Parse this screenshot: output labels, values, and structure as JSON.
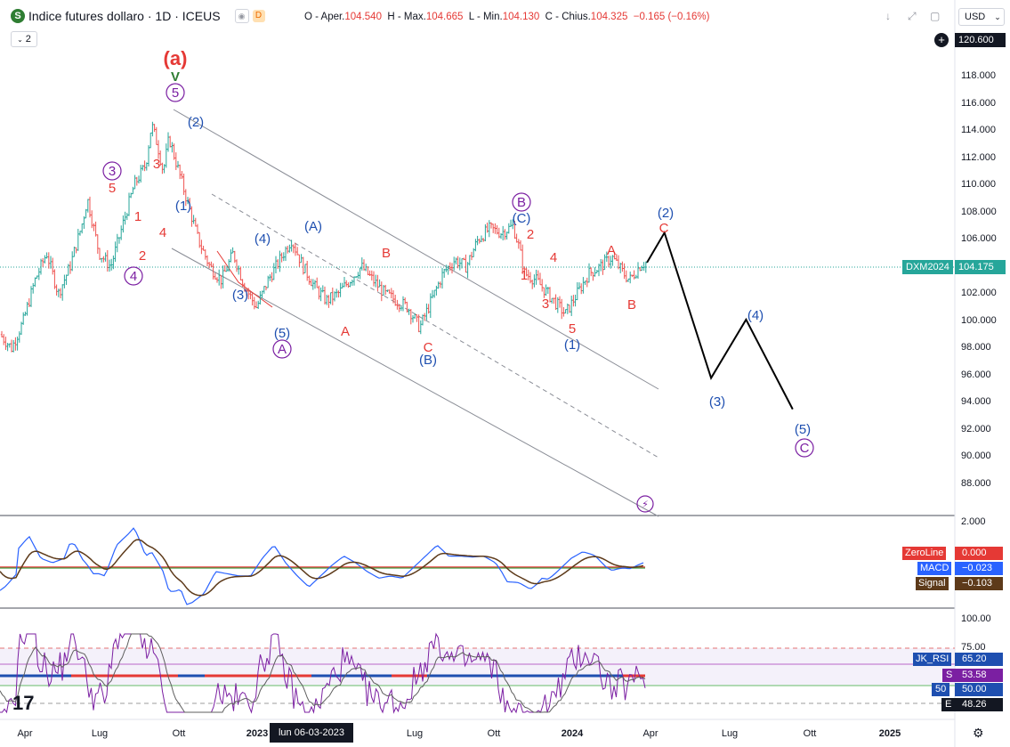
{
  "header": {
    "title": "Indice futures dollaro · 1D · ICEUS",
    "logo": "S",
    "open_label": "O - Aper.",
    "open_value": "104.540",
    "high_label": "H - Max.",
    "high_value": "104.665",
    "low_label": "L - Min.",
    "low_value": "104.130",
    "close_label": "C - Chius.",
    "close_value": "104.325",
    "change": "−0.165 (−0.16%)",
    "indicator_count": "2",
    "currency": "USD",
    "flag_d": "D"
  },
  "price_axis": {
    "ticks": [
      "120.600",
      "118.000",
      "116.000",
      "114.000",
      "112.000",
      "110.000",
      "108.000",
      "106.000",
      "104.175",
      "102.000",
      "100.000",
      "98.000",
      "96.000",
      "94.000",
      "92.000",
      "90.000",
      "88.000"
    ],
    "current_label": "DXM2024",
    "current_value": "104.175",
    "top_value": "120.600"
  },
  "macd_axis": {
    "top_tick": "2.000",
    "zeroline_label": "ZeroLine",
    "zeroline_value": "0.000",
    "macd_label": "MACD",
    "macd_value": "−0.023",
    "signal_label": "Signal",
    "signal_value": "−0.103"
  },
  "rsi_axis": {
    "ticks": [
      "100.00",
      "75.00"
    ],
    "jk_label": "JK_RSI",
    "jk_value": "65.20",
    "s_label": "S",
    "s_value": "53.58",
    "fifty_label": "50",
    "fifty_value": "50.00",
    "e_label": "E",
    "e_value": "48.26"
  },
  "time_axis": {
    "labels": [
      "Apr",
      "Lug",
      "Ott",
      "2023",
      "Lug",
      "Ott",
      "2024",
      "Apr",
      "Lug",
      "Ott",
      "2025"
    ],
    "crosshair_date": "lun 06-03-2023"
  },
  "watermark": "17",
  "colors": {
    "up": "#26a69a",
    "down": "#ef5350",
    "wave_red": "#e53935",
    "wave_blue": "#1e4fb0",
    "wave_purple": "#7b1fa2",
    "wave_green": "#2e7d32",
    "macd": "#2962ff",
    "signal": "#5d3a1a",
    "zeroline": "#e53935",
    "rsi": "#7b1fa2"
  },
  "chart_data": {
    "type": "line",
    "title": "Indice futures dollaro · 1D · ICEUS",
    "ylim": [
      86.5,
      121.5
    ],
    "price_path": [
      [
        0,
        99
      ],
      [
        2,
        98
      ],
      [
        4,
        100
      ],
      [
        6,
        103
      ],
      [
        8,
        105
      ],
      [
        10,
        102
      ],
      [
        12,
        104
      ],
      [
        14,
        107
      ],
      [
        15,
        109
      ],
      [
        17,
        105
      ],
      [
        19,
        104
      ],
      [
        21,
        107
      ],
      [
        23,
        110
      ],
      [
        25,
        111.5
      ],
      [
        26,
        114.5
      ],
      [
        27,
        113
      ],
      [
        28,
        111
      ],
      [
        29,
        113.5
      ],
      [
        30,
        112
      ],
      [
        32,
        109
      ],
      [
        34,
        106
      ],
      [
        36,
        104
      ],
      [
        38,
        103
      ],
      [
        40,
        105
      ],
      [
        42,
        102.5
      ],
      [
        44,
        101
      ],
      [
        46,
        103
      ],
      [
        48,
        104.5
      ],
      [
        50,
        106
      ],
      [
        52,
        104
      ],
      [
        54,
        102.5
      ],
      [
        56,
        101.5
      ],
      [
        58,
        102
      ],
      [
        60,
        103
      ],
      [
        62,
        104
      ],
      [
        64,
        103
      ],
      [
        66,
        102
      ],
      [
        68,
        101.5
      ],
      [
        70,
        101
      ],
      [
        72,
        99.5
      ],
      [
        74,
        101.5
      ],
      [
        76,
        103.5
      ],
      [
        78,
        104.5
      ],
      [
        80,
        104
      ],
      [
        82,
        106
      ],
      [
        84,
        106.8
      ],
      [
        86,
        106.5
      ],
      [
        88,
        107
      ],
      [
        89,
        105.5
      ],
      [
        90,
        103.5
      ],
      [
        92,
        103
      ],
      [
        94,
        102
      ],
      [
        96,
        101
      ],
      [
        97,
        100.5
      ],
      [
        99,
        102
      ],
      [
        101,
        103.5
      ],
      [
        103,
        104
      ],
      [
        105,
        104.7
      ],
      [
        107,
        103.5
      ],
      [
        108,
        103
      ],
      [
        110,
        104.2
      ],
      [
        111,
        104.3
      ]
    ],
    "projection": [
      [
        111,
        104.3
      ],
      [
        114,
        106.5
      ],
      [
        122,
        95.8
      ],
      [
        128,
        100.1
      ],
      [
        136,
        93.5
      ]
    ],
    "waves": [
      "(a)",
      "V",
      "5",
      "(2)",
      "(1)",
      "3",
      "5",
      "1",
      "2",
      "4",
      "3",
      "4",
      "(3)",
      "(4)",
      "(A)",
      "(5)",
      "A",
      "B",
      "A",
      "C",
      "(B)",
      "B",
      "(C)",
      "2",
      "1",
      "4",
      "3",
      "5",
      "(1)",
      "A",
      "B",
      "(2)",
      "C",
      "(3)",
      "(4)",
      "(5)",
      "C"
    ],
    "macd": {
      "zeroline": 0.0,
      "macd_last": -0.023,
      "signal_last": -0.103
    },
    "rsi": {
      "levels": [
        75,
        50
      ],
      "jk_rsi": 65.2,
      "s": 53.58,
      "e": 48.26
    }
  }
}
